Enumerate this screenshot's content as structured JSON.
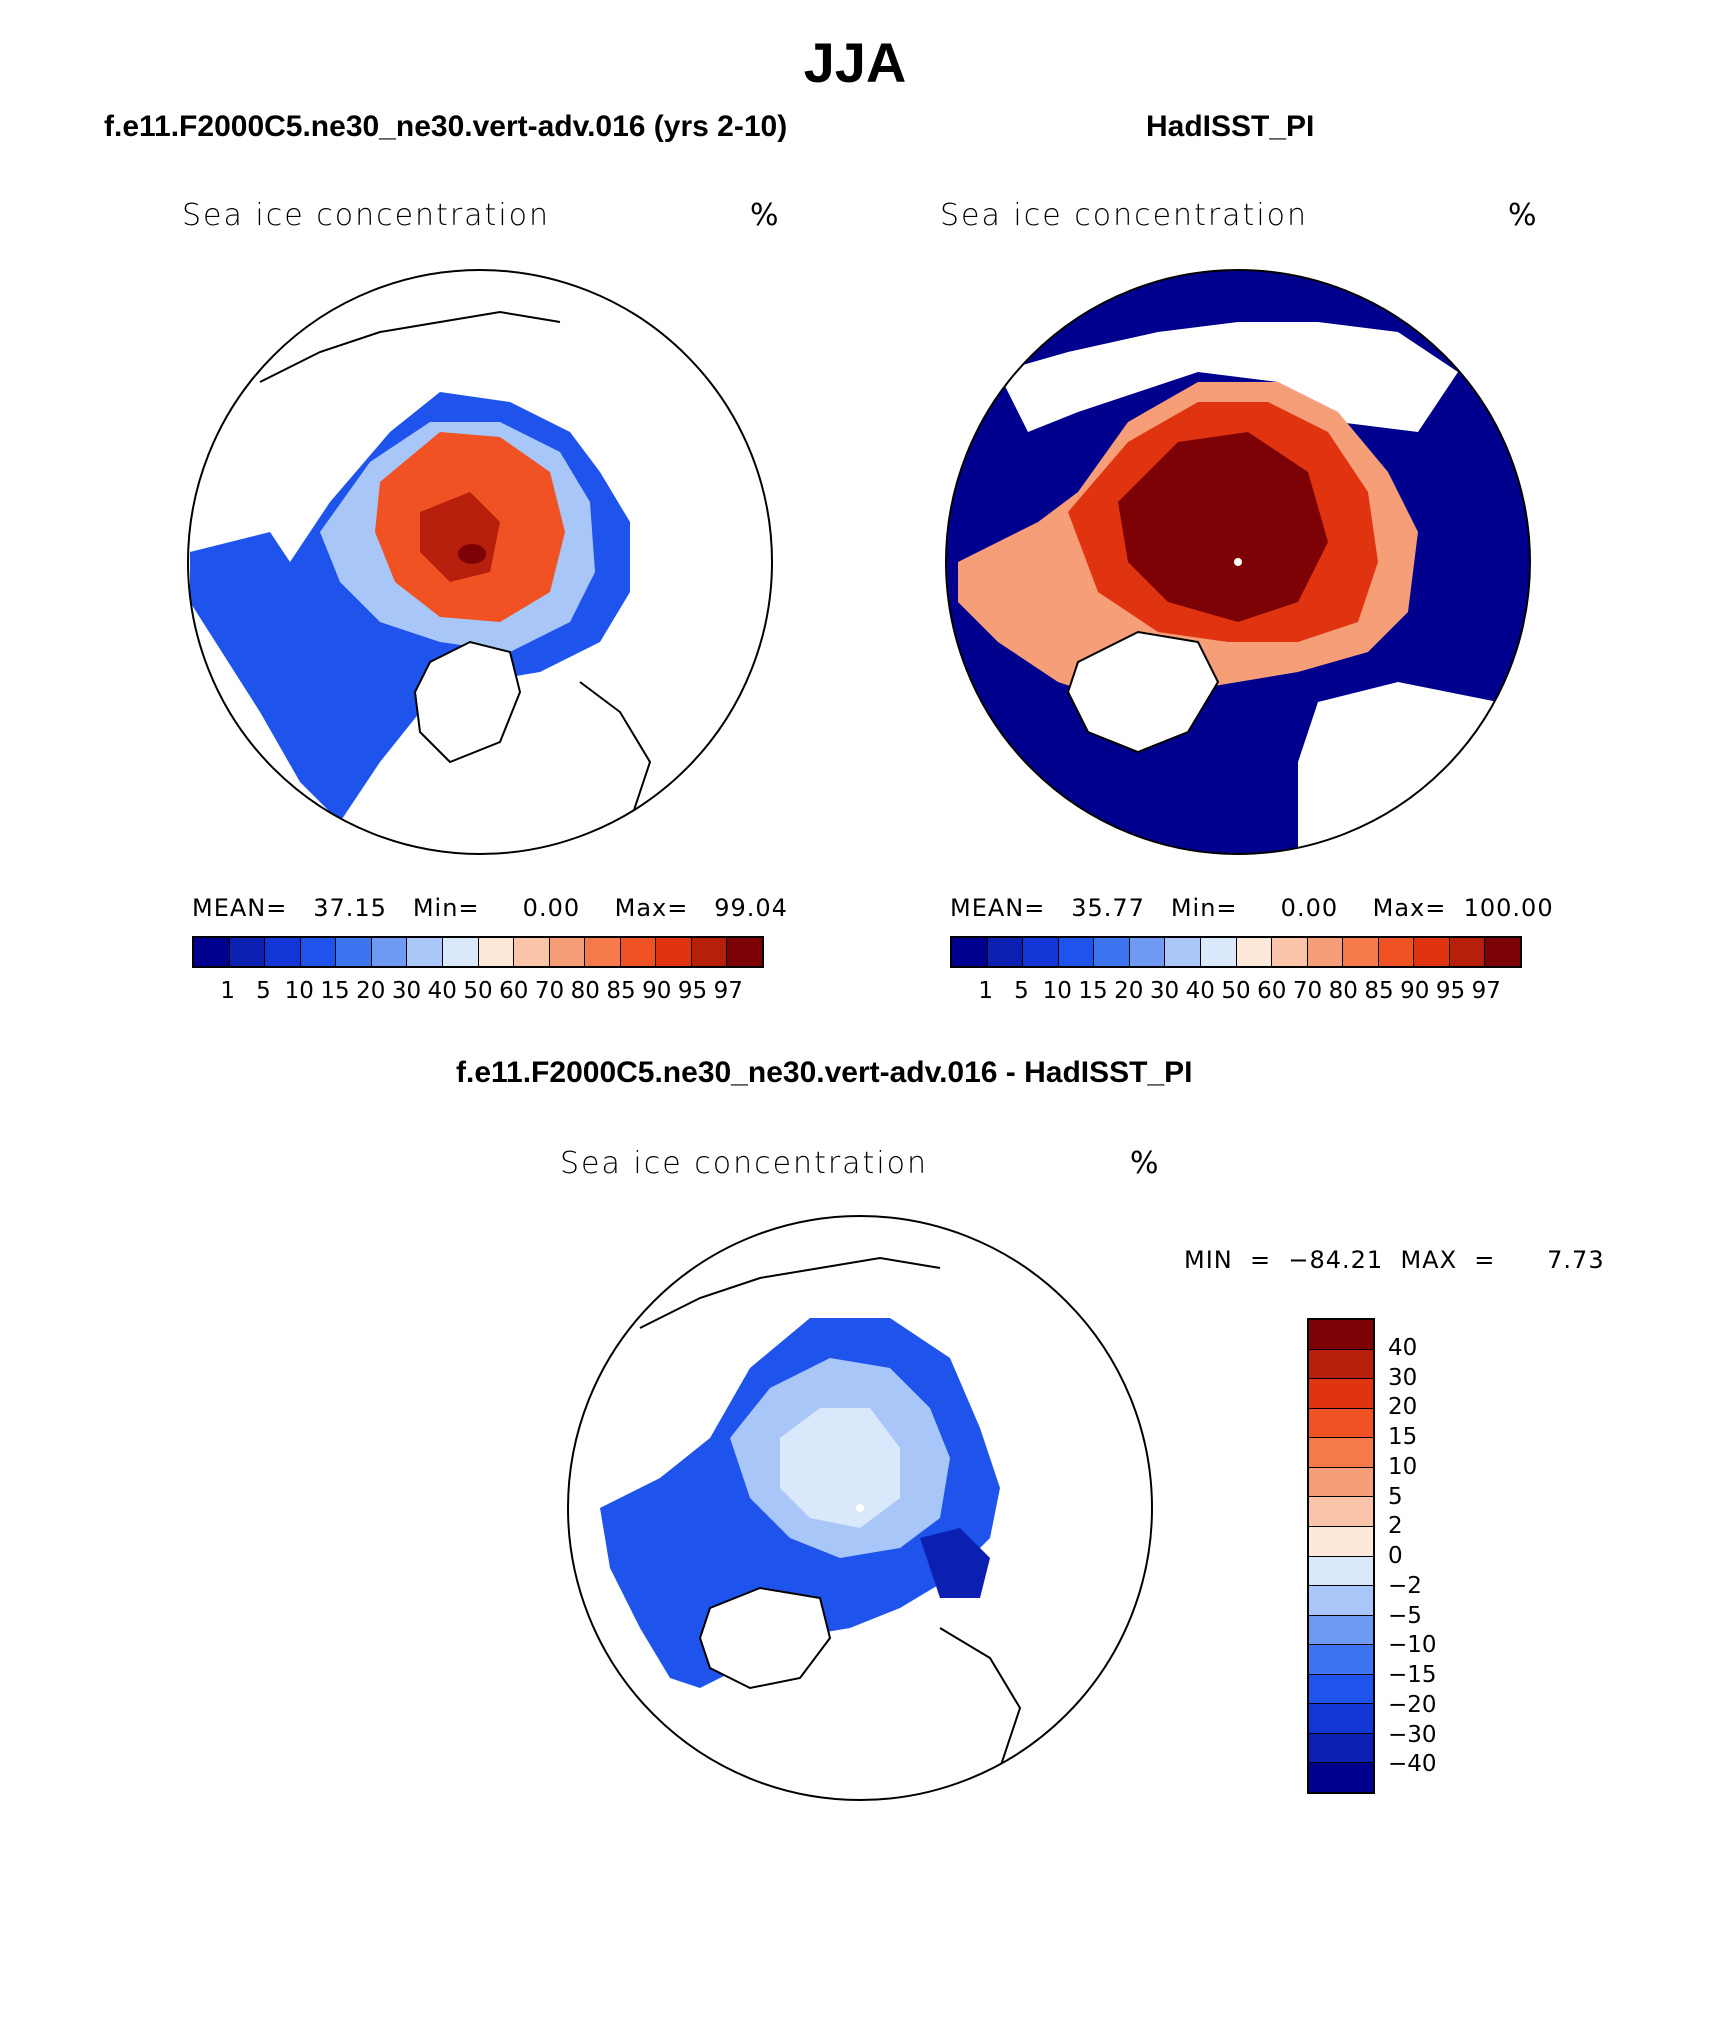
{
  "title": "JJA",
  "panels": [
    {
      "title": "f.e11.F2000C5.ne30_ne30.vert-adv.016 (yrs 2-10)",
      "variable": "Sea ice concentration",
      "units": "%",
      "stats": "MEAN=   37.15   Min=     0.00    Max=   99.04"
    },
    {
      "title": "HadISST_PI",
      "variable": "Sea ice concentration",
      "units": "%",
      "stats": "MEAN=   35.77   Min=     0.00    Max=  100.00"
    },
    {
      "title": "f.e11.F2000C5.ne30_ne30.vert-adv.016 - HadISST_PI",
      "variable": "Sea ice concentration",
      "units": "%",
      "stats": "MIN  =  −84.21  MAX  =      7.73"
    }
  ],
  "colorbar_abs": {
    "labels": [
      "1",
      "5",
      "10",
      "15",
      "20",
      "30",
      "40",
      "50",
      "60",
      "70",
      "80",
      "85",
      "90",
      "95",
      "97"
    ],
    "colors": [
      "#00008e",
      "#0b1fb0",
      "#1237d6",
      "#1f54ec",
      "#3d74f0",
      "#6f9af3",
      "#a9c6f8",
      "#d9e8fb",
      "#fde8da",
      "#f9c4a8",
      "#f69e77",
      "#f47a4a",
      "#f05224",
      "#e03410",
      "#b61f0b",
      "#7d0205"
    ]
  },
  "colorbar_diff": {
    "labels": [
      "40",
      "30",
      "20",
      "15",
      "10",
      "5",
      "2",
      "0",
      "−2",
      "−5",
      "−10",
      "−15",
      "−20",
      "−30",
      "−40"
    ],
    "colors": [
      "#7d0205",
      "#b61f0b",
      "#e03410",
      "#f05224",
      "#f47a4a",
      "#f69e77",
      "#f9c4a8",
      "#fde8da",
      "#d9e8fb",
      "#a9c6f8",
      "#6f9af3",
      "#3d74f0",
      "#1f54ec",
      "#1237d6",
      "#0b1fb0",
      "#00008e"
    ]
  }
}
